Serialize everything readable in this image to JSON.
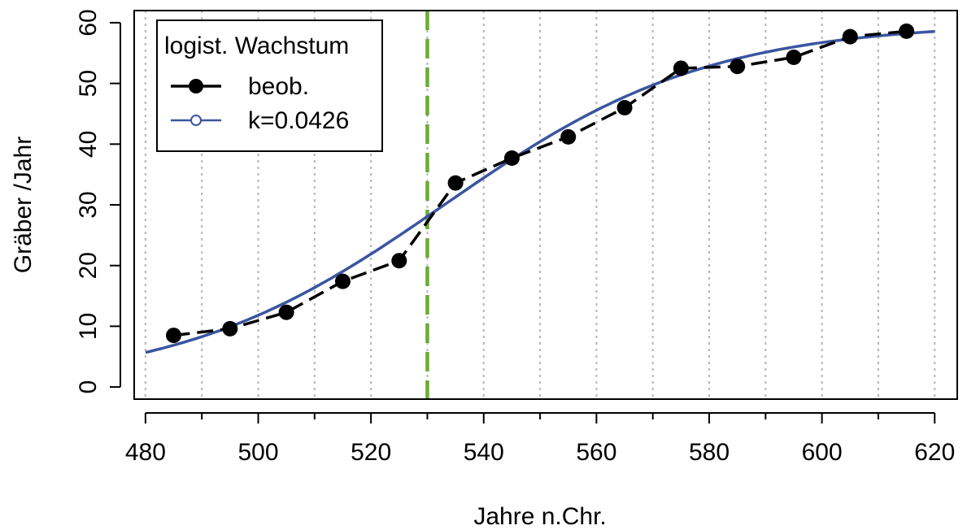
{
  "chart_data": {
    "type": "line",
    "xlabel": "Jahre n.Chr.",
    "ylabel": "Gräber /Jahr",
    "xlim": [
      478,
      624
    ],
    "ylim": [
      -2,
      62
    ],
    "x_ticks": [
      480,
      500,
      520,
      540,
      560,
      580,
      600,
      620
    ],
    "y_ticks": [
      0,
      10,
      20,
      30,
      40,
      50,
      60
    ],
    "grid": "vertical dotted every 10 years",
    "marker_line": {
      "x": 530,
      "color": "#6aaa3a",
      "style": "dashed"
    },
    "legend": {
      "title": "logist. Wachstum",
      "position": "top-left",
      "entries": [
        {
          "label": "beob.",
          "color": "#000000",
          "marker": "filled-circle",
          "line": "dashed"
        },
        {
          "label": "k=0.0426",
          "color": "#3a55a0",
          "marker": "open-circle",
          "line": "solid"
        }
      ]
    },
    "series": [
      {
        "name": "beob.",
        "x": [
          485,
          495,
          505,
          515,
          525,
          535,
          545,
          555,
          565,
          575,
          585,
          595,
          605,
          615
        ],
        "y": [
          8.5,
          9.6,
          12.3,
          17.4,
          20.8,
          33.6,
          37.7,
          41.2,
          46.0,
          52.5,
          52.8,
          54.3,
          57.7,
          58.6
        ]
      },
      {
        "name": "k=0.0426",
        "model": "logistic",
        "K": 60,
        "k": 0.0426,
        "x0": 533,
        "x_range": [
          480,
          620
        ]
      }
    ]
  }
}
